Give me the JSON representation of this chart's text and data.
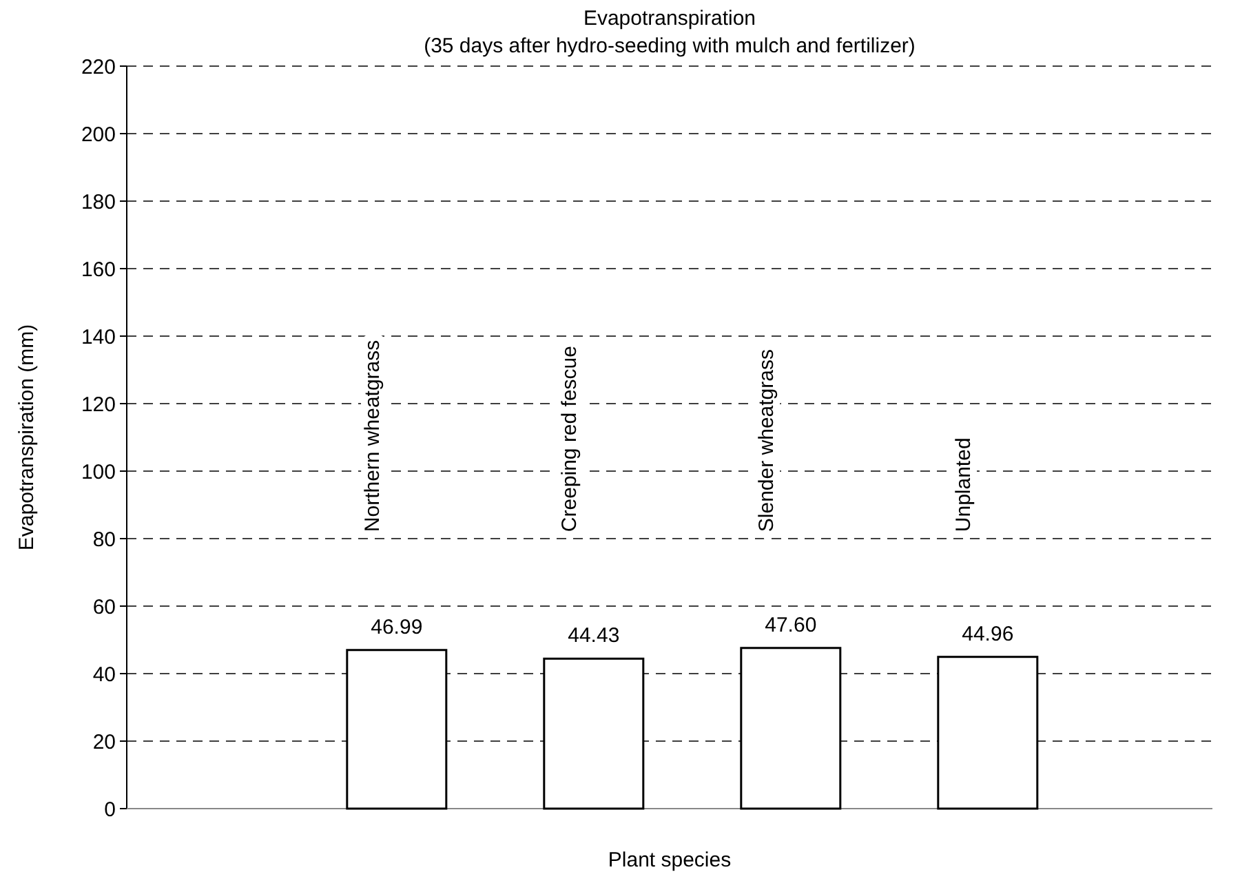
{
  "chart_data": {
    "type": "bar",
    "title": "Evapotranspiration",
    "subtitle": "(35 days after hydro-seeding with mulch and fertilizer)",
    "xlabel": "Plant species",
    "ylabel": "Evapotranspiration (mm)",
    "categories": [
      "Northern wheatgrass",
      "Creeping red fescue",
      "Slender wheatgrass",
      "Unplanted"
    ],
    "values": [
      46.99,
      44.43,
      47.6,
      44.96
    ],
    "value_labels": [
      "46.99",
      "44.43",
      "47.60",
      "44.96"
    ],
    "color": "#ffffff",
    "ylim": [
      0,
      220
    ],
    "yticks": [
      0,
      20,
      40,
      60,
      80,
      100,
      120,
      140,
      160,
      180,
      200,
      220
    ],
    "grid": "y",
    "tick_labels": "y"
  }
}
